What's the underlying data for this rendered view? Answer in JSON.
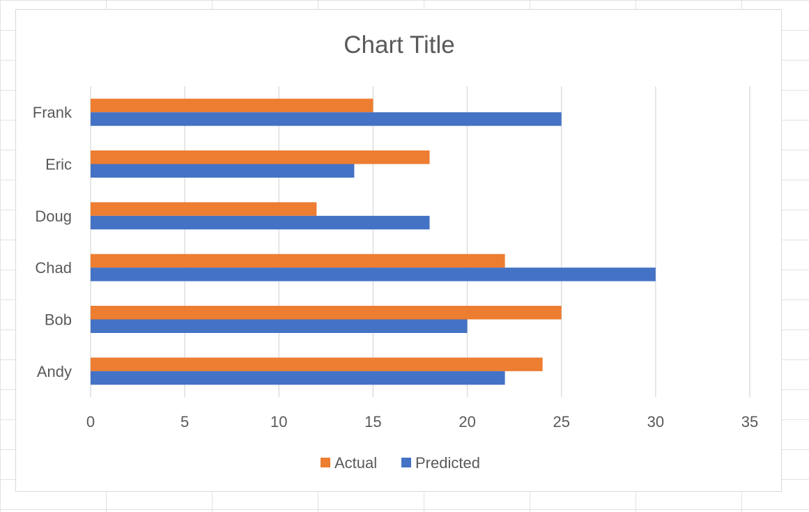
{
  "chart_data": {
    "type": "bar",
    "orientation": "horizontal",
    "title": "Chart Title",
    "categories": [
      "Andy",
      "Bob",
      "Chad",
      "Doug",
      "Eric",
      "Frank"
    ],
    "series": [
      {
        "name": "Predicted",
        "color": "#4472c4",
        "values": [
          22,
          20,
          30,
          18,
          14,
          25
        ]
      },
      {
        "name": "Actual",
        "color": "#ed7d31",
        "values": [
          24,
          25,
          22,
          12,
          18,
          15
        ]
      }
    ],
    "legend_order": [
      "Actual",
      "Predicted"
    ],
    "xlim": [
      0,
      35
    ],
    "xticks": [
      "0",
      "5",
      "10",
      "15",
      "20",
      "25",
      "30",
      "35"
    ],
    "grid": true,
    "legend_position": "bottom"
  }
}
